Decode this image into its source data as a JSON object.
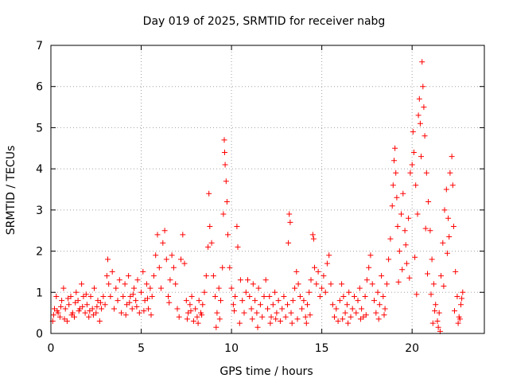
{
  "chart_data": {
    "type": "scatter",
    "title": "Day 019 of 2025, SRMTID for receiver nabg",
    "xlabel": "GPS time / hours",
    "ylabel": "SRMTID / TECUs",
    "xlim": [
      0,
      24
    ],
    "ylim": [
      0,
      7
    ],
    "xticks": [
      0,
      5,
      10,
      15,
      20
    ],
    "yticks": [
      0,
      1,
      2,
      3,
      4,
      5,
      6,
      7
    ],
    "grid": true,
    "marker": "+",
    "color": "#ff0000",
    "series": [
      {
        "name": "SRMTID",
        "points": [
          [
            0.1,
            0.3
          ],
          [
            0.2,
            0.6
          ],
          [
            0.3,
            0.9
          ],
          [
            0.4,
            0.5
          ],
          [
            0.5,
            0.4
          ],
          [
            0.6,
            0.8
          ],
          [
            0.7,
            1.1
          ],
          [
            0.8,
            0.6
          ],
          [
            0.9,
            0.3
          ],
          [
            1.0,
            0.7
          ],
          [
            1.1,
            0.9
          ],
          [
            1.2,
            0.5
          ],
          [
            1.3,
            0.4
          ],
          [
            1.4,
            1.0
          ],
          [
            1.5,
            0.8
          ],
          [
            1.6,
            0.6
          ],
          [
            1.7,
            1.2
          ],
          [
            1.8,
            0.9
          ],
          [
            1.9,
            0.5
          ],
          [
            2.0,
            0.7
          ],
          [
            2.1,
            0.4
          ],
          [
            2.2,
            0.9
          ],
          [
            2.3,
            0.6
          ],
          [
            2.4,
            1.1
          ],
          [
            2.5,
            0.5
          ],
          [
            2.6,
            0.8
          ],
          [
            2.7,
            0.3
          ],
          [
            2.8,
            0.6
          ],
          [
            2.9,
            0.9
          ],
          [
            3.0,
            0.7
          ],
          [
            3.1,
            1.4
          ],
          [
            3.15,
            1.8
          ],
          [
            3.2,
            1.2
          ],
          [
            3.3,
            0.9
          ],
          [
            3.4,
            1.5
          ],
          [
            3.5,
            0.6
          ],
          [
            3.6,
            1.1
          ],
          [
            3.7,
            0.8
          ],
          [
            3.8,
            1.3
          ],
          [
            3.9,
            0.5
          ],
          [
            4.0,
            0.9
          ],
          [
            4.1,
            1.2
          ],
          [
            4.2,
            0.7
          ],
          [
            4.3,
            1.4
          ],
          [
            4.4,
            0.9
          ],
          [
            4.5,
            0.6
          ],
          [
            4.6,
            1.1
          ],
          [
            4.7,
            0.8
          ],
          [
            4.8,
            1.3
          ],
          [
            4.9,
            0.5
          ],
          [
            5.0,
            1.0
          ],
          [
            5.1,
            1.5
          ],
          [
            5.2,
            0.8
          ],
          [
            5.3,
            1.2
          ],
          [
            5.4,
            0.6
          ],
          [
            5.5,
            1.1
          ],
          [
            5.6,
            0.9
          ],
          [
            5.7,
            1.4
          ],
          [
            5.8,
            1.9
          ],
          [
            5.9,
            2.4
          ],
          [
            6.0,
            1.6
          ],
          [
            6.1,
            1.1
          ],
          [
            6.2,
            2.2
          ],
          [
            6.3,
            2.5
          ],
          [
            6.4,
            1.8
          ],
          [
            6.5,
            0.9
          ],
          [
            6.6,
            1.3
          ],
          [
            6.7,
            1.9
          ],
          [
            6.8,
            1.6
          ],
          [
            6.9,
            1.2
          ],
          [
            7.0,
            0.6
          ],
          [
            7.1,
            0.4
          ],
          [
            7.2,
            1.8
          ],
          [
            7.3,
            2.4
          ],
          [
            7.4,
            1.7
          ],
          [
            7.5,
            0.8
          ],
          [
            7.6,
            0.5
          ],
          [
            7.7,
            0.7
          ],
          [
            7.8,
            0.9
          ],
          [
            7.9,
            0.3
          ],
          [
            8.0,
            0.6
          ],
          [
            8.1,
            0.4
          ],
          [
            8.2,
            0.8
          ],
          [
            8.3,
            0.5
          ],
          [
            8.4,
            0.7
          ],
          [
            8.5,
            1.0
          ],
          [
            8.6,
            1.4
          ],
          [
            8.7,
            2.1
          ],
          [
            8.75,
            3.4
          ],
          [
            8.8,
            2.6
          ],
          [
            8.9,
            2.2
          ],
          [
            9.0,
            1.4
          ],
          [
            9.1,
            0.9
          ],
          [
            9.2,
            0.5
          ],
          [
            9.3,
            1.1
          ],
          [
            9.4,
            0.8
          ],
          [
            9.5,
            1.6
          ],
          [
            9.55,
            2.9
          ],
          [
            9.6,
            4.7
          ],
          [
            9.62,
            4.4
          ],
          [
            9.65,
            4.1
          ],
          [
            9.7,
            3.7
          ],
          [
            9.75,
            3.2
          ],
          [
            9.8,
            2.4
          ],
          [
            9.9,
            1.6
          ],
          [
            10.0,
            1.1
          ],
          [
            10.1,
            0.7
          ],
          [
            10.2,
            0.9
          ],
          [
            10.3,
            2.6
          ],
          [
            10.35,
            2.1
          ],
          [
            10.5,
            1.3
          ],
          [
            10.6,
            0.8
          ],
          [
            10.7,
            0.5
          ],
          [
            10.8,
            1.0
          ],
          [
            10.9,
            1.3
          ],
          [
            11.0,
            0.9
          ],
          [
            11.1,
            0.6
          ],
          [
            11.2,
            1.2
          ],
          [
            11.3,
            0.8
          ],
          [
            11.4,
            0.5
          ],
          [
            11.5,
            1.1
          ],
          [
            11.6,
            0.7
          ],
          [
            11.7,
            0.4
          ],
          [
            11.8,
            0.9
          ],
          [
            11.9,
            1.3
          ],
          [
            12.0,
            0.6
          ],
          [
            12.1,
            0.9
          ],
          [
            12.2,
            0.4
          ],
          [
            12.3,
            0.7
          ],
          [
            12.4,
            1.0
          ],
          [
            12.5,
            0.5
          ],
          [
            12.6,
            0.8
          ],
          [
            12.7,
            0.3
          ],
          [
            12.8,
            0.6
          ],
          [
            12.9,
            0.9
          ],
          [
            13.0,
            0.4
          ],
          [
            13.1,
            0.7
          ],
          [
            13.15,
            2.2
          ],
          [
            13.2,
            2.9
          ],
          [
            13.25,
            2.7
          ],
          [
            13.3,
            0.5
          ],
          [
            13.4,
            0.8
          ],
          [
            13.5,
            1.1
          ],
          [
            13.6,
            1.5
          ],
          [
            13.7,
            1.2
          ],
          [
            13.8,
            0.9
          ],
          [
            13.9,
            0.6
          ],
          [
            14.0,
            0.8
          ],
          [
            14.1,
            0.4
          ],
          [
            14.2,
            0.7
          ],
          [
            14.3,
            1.0
          ],
          [
            14.4,
            1.3
          ],
          [
            14.5,
            2.4
          ],
          [
            14.55,
            2.3
          ],
          [
            14.6,
            1.6
          ],
          [
            14.7,
            1.2
          ],
          [
            14.8,
            1.5
          ],
          [
            14.9,
            0.9
          ],
          [
            15.0,
            1.1
          ],
          [
            15.1,
            1.4
          ],
          [
            15.2,
            1.0
          ],
          [
            15.3,
            1.7
          ],
          [
            15.4,
            1.9
          ],
          [
            15.5,
            1.2
          ],
          [
            15.6,
            0.7
          ],
          [
            15.7,
            0.4
          ],
          [
            15.8,
            0.6
          ],
          [
            15.9,
            0.3
          ],
          [
            16.0,
            0.8
          ],
          [
            16.1,
            1.2
          ],
          [
            16.2,
            0.9
          ],
          [
            16.3,
            0.5
          ],
          [
            16.4,
            0.7
          ],
          [
            16.5,
            1.0
          ],
          [
            16.6,
            0.4
          ],
          [
            16.7,
            0.6
          ],
          [
            16.8,
            0.9
          ],
          [
            16.9,
            0.5
          ],
          [
            17.0,
            0.8
          ],
          [
            17.1,
            1.1
          ],
          [
            17.2,
            0.6
          ],
          [
            17.3,
            0.4
          ],
          [
            17.4,
            0.9
          ],
          [
            17.5,
            1.3
          ],
          [
            17.6,
            1.6
          ],
          [
            17.7,
            1.9
          ],
          [
            17.8,
            1.2
          ],
          [
            17.9,
            0.8
          ],
          [
            18.0,
            0.5
          ],
          [
            18.1,
            1.0
          ],
          [
            18.2,
            0.7
          ],
          [
            18.3,
            1.4
          ],
          [
            18.4,
            0.9
          ],
          [
            18.5,
            0.6
          ],
          [
            18.6,
            1.2
          ],
          [
            18.7,
            1.8
          ],
          [
            18.8,
            2.3
          ],
          [
            18.9,
            3.1
          ],
          [
            18.95,
            3.6
          ],
          [
            19.0,
            4.2
          ],
          [
            19.05,
            4.5
          ],
          [
            19.1,
            3.9
          ],
          [
            19.15,
            3.3
          ],
          [
            19.2,
            2.6
          ],
          [
            19.3,
            2.0
          ],
          [
            19.4,
            2.9
          ],
          [
            19.5,
            3.4
          ],
          [
            19.6,
            2.5
          ],
          [
            19.7,
            1.7
          ],
          [
            19.8,
            2.8
          ],
          [
            19.9,
            3.9
          ],
          [
            20.0,
            4.1
          ],
          [
            20.05,
            4.9
          ],
          [
            20.1,
            4.4
          ],
          [
            20.2,
            3.6
          ],
          [
            20.3,
            2.9
          ],
          [
            20.35,
            5.3
          ],
          [
            20.4,
            5.7
          ],
          [
            20.45,
            5.1
          ],
          [
            20.5,
            4.3
          ],
          [
            20.55,
            6.6
          ],
          [
            20.6,
            6.0
          ],
          [
            20.65,
            5.5
          ],
          [
            20.7,
            4.8
          ],
          [
            20.8,
            3.9
          ],
          [
            20.9,
            3.2
          ],
          [
            21.0,
            2.5
          ],
          [
            21.1,
            1.8
          ],
          [
            21.2,
            1.2
          ],
          [
            21.3,
            0.7
          ],
          [
            21.4,
            0.3
          ],
          [
            21.5,
            0.5
          ],
          [
            21.6,
            1.4
          ],
          [
            21.7,
            2.2
          ],
          [
            21.8,
            3.0
          ],
          [
            21.9,
            3.5
          ],
          [
            22.0,
            2.8
          ],
          [
            22.1,
            3.9
          ],
          [
            22.2,
            4.3
          ],
          [
            22.25,
            3.6
          ],
          [
            22.3,
            2.6
          ],
          [
            22.4,
            1.5
          ],
          [
            22.5,
            0.9
          ],
          [
            22.6,
            0.4
          ],
          [
            22.7,
            0.7
          ],
          [
            22.8,
            1.0
          ],
          [
            0.15,
            0.45
          ],
          [
            0.35,
            0.55
          ],
          [
            0.55,
            0.65
          ],
          [
            0.75,
            0.35
          ],
          [
            0.95,
            0.85
          ],
          [
            1.15,
            0.45
          ],
          [
            1.35,
            0.75
          ],
          [
            1.55,
            0.55
          ],
          [
            1.75,
            0.65
          ],
          [
            1.95,
            0.95
          ],
          [
            2.15,
            0.55
          ],
          [
            2.35,
            0.45
          ],
          [
            2.55,
            0.65
          ],
          [
            2.75,
            0.75
          ],
          [
            4.15,
            0.45
          ],
          [
            4.35,
            0.75
          ],
          [
            4.55,
            0.95
          ],
          [
            4.75,
            0.65
          ],
          [
            5.15,
            0.55
          ],
          [
            5.35,
            0.85
          ],
          [
            5.55,
            0.45
          ],
          [
            6.55,
            0.75
          ],
          [
            7.55,
            0.35
          ],
          [
            7.75,
            0.55
          ],
          [
            8.15,
            0.25
          ],
          [
            8.35,
            0.45
          ],
          [
            9.15,
            0.15
          ],
          [
            9.35,
            0.35
          ],
          [
            10.15,
            0.55
          ],
          [
            10.45,
            0.25
          ],
          [
            11.15,
            0.35
          ],
          [
            11.45,
            0.15
          ],
          [
            12.15,
            0.25
          ],
          [
            12.45,
            0.35
          ],
          [
            13.35,
            0.25
          ],
          [
            13.65,
            0.35
          ],
          [
            14.15,
            0.25
          ],
          [
            14.35,
            0.45
          ],
          [
            16.15,
            0.35
          ],
          [
            16.45,
            0.25
          ],
          [
            17.15,
            0.35
          ],
          [
            17.45,
            0.45
          ],
          [
            18.15,
            0.35
          ],
          [
            18.45,
            0.45
          ],
          [
            19.25,
            1.25
          ],
          [
            19.45,
            1.55
          ],
          [
            19.65,
            2.15
          ],
          [
            19.85,
            1.35
          ],
          [
            20.15,
            1.85
          ],
          [
            20.25,
            0.95
          ],
          [
            20.75,
            2.55
          ],
          [
            20.85,
            1.45
          ],
          [
            21.05,
            0.95
          ],
          [
            21.25,
            0.55
          ],
          [
            21.45,
            0.15
          ],
          [
            21.55,
            0.05
          ],
          [
            21.75,
            1.15
          ],
          [
            21.95,
            1.95
          ],
          [
            22.05,
            2.35
          ],
          [
            22.35,
            0.55
          ],
          [
            22.55,
            0.25
          ],
          [
            22.65,
            0.35
          ],
          [
            22.75,
            0.85
          ],
          [
            21.15,
            0.25
          ]
        ]
      }
    ]
  }
}
